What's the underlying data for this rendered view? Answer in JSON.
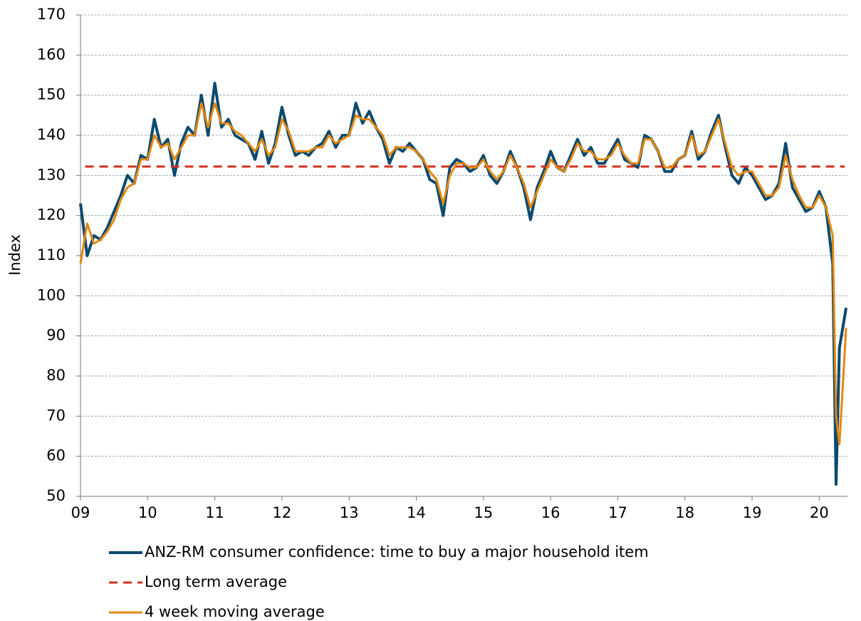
{
  "chart_data": {
    "type": "line",
    "y_label": "Index",
    "xlim": [
      2009,
      2020.42
    ],
    "xticks": [
      {
        "value": 2009,
        "label": "09"
      },
      {
        "value": 2010,
        "label": "10"
      },
      {
        "value": 2011,
        "label": "11"
      },
      {
        "value": 2012,
        "label": "12"
      },
      {
        "value": 2013,
        "label": "13"
      },
      {
        "value": 2014,
        "label": "14"
      },
      {
        "value": 2015,
        "label": "15"
      },
      {
        "value": 2016,
        "label": "16"
      },
      {
        "value": 2017,
        "label": "17"
      },
      {
        "value": 2018,
        "label": "18"
      },
      {
        "value": 2019,
        "label": "19"
      },
      {
        "value": 2020,
        "label": "20"
      }
    ],
    "ylim": [
      50,
      170
    ],
    "yticks": [
      50,
      60,
      70,
      80,
      90,
      100,
      110,
      120,
      130,
      140,
      150,
      160,
      170
    ],
    "grid": true,
    "legend": "bottom",
    "x": [
      2009.0,
      2009.1,
      2009.2,
      2009.3,
      2009.4,
      2009.5,
      2009.6,
      2009.7,
      2009.8,
      2009.9,
      2010.0,
      2010.1,
      2010.2,
      2010.3,
      2010.4,
      2010.5,
      2010.6,
      2010.7,
      2010.8,
      2010.9,
      2011.0,
      2011.1,
      2011.2,
      2011.3,
      2011.4,
      2011.5,
      2011.6,
      2011.7,
      2011.8,
      2011.9,
      2012.0,
      2012.1,
      2012.2,
      2012.3,
      2012.4,
      2012.5,
      2012.6,
      2012.7,
      2012.8,
      2012.9,
      2013.0,
      2013.1,
      2013.2,
      2013.3,
      2013.4,
      2013.5,
      2013.6,
      2013.7,
      2013.8,
      2013.9,
      2014.0,
      2014.1,
      2014.2,
      2014.3,
      2014.4,
      2014.5,
      2014.6,
      2014.7,
      2014.8,
      2014.9,
      2015.0,
      2015.1,
      2015.2,
      2015.3,
      2015.4,
      2015.5,
      2015.6,
      2015.7,
      2015.8,
      2015.9,
      2016.0,
      2016.1,
      2016.2,
      2016.3,
      2016.4,
      2016.5,
      2016.6,
      2016.7,
      2016.8,
      2016.9,
      2017.0,
      2017.1,
      2017.2,
      2017.3,
      2017.4,
      2017.5,
      2017.6,
      2017.7,
      2017.8,
      2017.9,
      2018.0,
      2018.1,
      2018.2,
      2018.3,
      2018.4,
      2018.5,
      2018.6,
      2018.7,
      2018.8,
      2018.9,
      2019.0,
      2019.1,
      2019.2,
      2019.3,
      2019.4,
      2019.5,
      2019.6,
      2019.7,
      2019.8,
      2019.9,
      2020.0,
      2020.1,
      2020.2,
      2020.25,
      2020.3,
      2020.4
    ],
    "series": [
      {
        "name": "ANZ-RM consumer confidence: time to buy a major household item",
        "color": "#0b4a6e",
        "width": 4,
        "dash": null,
        "values": [
          123,
          110,
          115,
          114,
          117,
          121,
          125,
          130,
          128,
          135,
          134,
          144,
          137,
          139,
          130,
          138,
          142,
          140,
          150,
          140,
          153,
          142,
          144,
          140,
          139,
          138,
          134,
          141,
          133,
          138,
          147,
          140,
          135,
          136,
          135,
          137,
          138,
          141,
          137,
          140,
          140,
          148,
          143,
          146,
          142,
          139,
          133,
          137,
          136,
          138,
          136,
          134,
          129,
          128,
          120,
          132,
          134,
          133,
          131,
          132,
          135,
          130,
          128,
          131,
          136,
          132,
          127,
          119,
          127,
          131,
          136,
          132,
          131,
          135,
          139,
          135,
          137,
          133,
          133,
          136,
          139,
          134,
          133,
          132,
          140,
          139,
          136,
          131,
          131,
          134,
          135,
          141,
          134,
          136,
          141,
          145,
          137,
          130,
          128,
          132,
          130,
          127,
          124,
          125,
          128,
          138,
          127,
          124,
          121,
          122,
          126,
          122,
          108,
          53,
          87,
          97
        ]
      },
      {
        "name": "Long term average",
        "color": "#d0311c",
        "width": 3,
        "dash": "12 8",
        "x": [
          2009.07,
          2020.38
        ],
        "values": [
          132.2,
          132.2
        ]
      },
      {
        "name": "4 week moving average",
        "color": "#e5870f",
        "width": 3,
        "dash": null,
        "values": [
          108,
          118,
          113,
          114,
          116,
          119,
          124,
          127,
          128,
          134,
          134,
          140,
          137,
          138,
          134,
          137,
          140,
          140,
          148,
          142,
          148,
          143,
          143,
          141,
          140,
          138,
          136,
          139,
          135,
          137,
          144,
          141,
          136,
          136,
          136,
          137,
          137,
          140,
          138,
          139,
          140,
          145,
          144,
          144,
          142,
          140,
          135,
          137,
          137,
          137,
          136,
          134,
          131,
          129,
          123,
          130,
          133,
          133,
          132,
          132,
          134,
          131,
          129,
          131,
          135,
          132,
          128,
          122,
          126,
          130,
          134,
          132,
          131,
          134,
          138,
          136,
          136,
          134,
          134,
          135,
          138,
          135,
          133,
          133,
          139,
          139,
          136,
          132,
          132,
          134,
          135,
          140,
          135,
          136,
          140,
          144,
          138,
          132,
          130,
          131,
          131,
          128,
          125,
          125,
          127,
          135,
          129,
          125,
          122,
          122,
          125,
          122,
          115,
          70,
          63,
          92
        ]
      }
    ]
  }
}
